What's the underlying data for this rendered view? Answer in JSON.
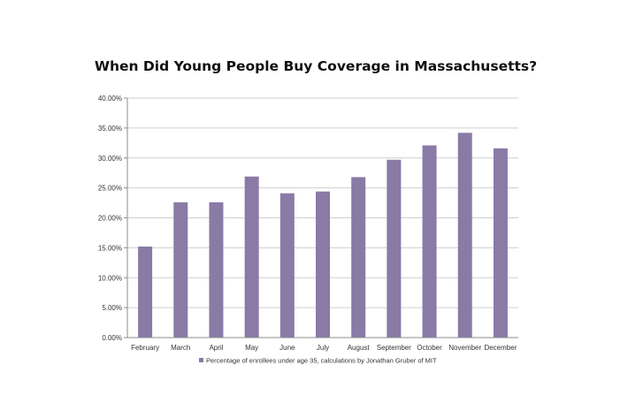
{
  "chart_data": {
    "type": "bar",
    "title": "When Did Young People Buy Coverage in Massachusetts?",
    "xlabel": "",
    "ylabel": "",
    "categories": [
      "February",
      "March",
      "April",
      "May",
      "June",
      "July",
      "August",
      "September",
      "October",
      "November",
      "December"
    ],
    "series": [
      {
        "name": "Percentage of enrollees under age 35, calculations by Jonathan Gruber of MIT",
        "values": [
          15.2,
          22.6,
          22.6,
          26.9,
          24.1,
          24.4,
          26.8,
          29.7,
          32.1,
          34.2,
          31.6
        ]
      }
    ],
    "ylim": [
      0,
      40
    ],
    "yticks": [
      "0.00%",
      "5.00%",
      "10.00%",
      "15.00%",
      "20.00%",
      "25.00%",
      "30.00%",
      "35.00%",
      "40.00%"
    ],
    "grid": true,
    "legend_position": "bottom",
    "colors": {
      "bar": "#8a7aa6",
      "grid": "#cfcfcf",
      "axis": "#8c8c8c"
    }
  }
}
